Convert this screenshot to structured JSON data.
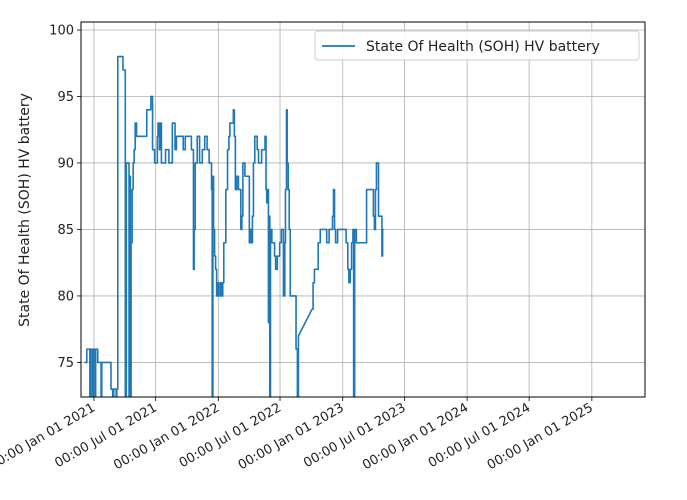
{
  "chart_data": {
    "type": "line",
    "title": "",
    "xlabel": "",
    "ylabel": "State Of Health (SOH) HV battery",
    "ylim": [
      72.4,
      100.6
    ],
    "xlim_days": [
      -38,
      1617
    ],
    "yticks": [
      75,
      80,
      85,
      90,
      95,
      100
    ],
    "xticks": [
      {
        "label": "00:00 Jan 01 2021",
        "day": 0
      },
      {
        "label": "00:00 Jul 01 2021",
        "day": 181
      },
      {
        "label": "00:00 Jan 01 2022",
        "day": 365
      },
      {
        "label": "00:00 Jul 01 2022",
        "day": 546
      },
      {
        "label": "00:00 Jan 01 2023",
        "day": 730
      },
      {
        "label": "00:00 Jul 01 2023",
        "day": 911
      },
      {
        "label": "00:00 Jan 01 2024",
        "day": 1095
      },
      {
        "label": "00:00 Jul 01 2024",
        "day": 1277
      },
      {
        "label": "00:00 Jan 01 2025",
        "day": 1461
      }
    ],
    "grid": true,
    "legend_position": "top-right",
    "series": [
      {
        "name": "State Of Health (SOH) HV battery",
        "color": "#1f77b4",
        "x_unit": "days since 2021-01-01",
        "points": [
          [
            -28,
            75
          ],
          [
            -21,
            75
          ],
          [
            -21,
            76
          ],
          [
            -12,
            76
          ],
          [
            -12,
            72
          ],
          [
            -10,
            72
          ],
          [
            -10,
            76
          ],
          [
            -5,
            76
          ],
          [
            -5,
            72
          ],
          [
            -2,
            72
          ],
          [
            -2,
            76
          ],
          [
            3,
            76
          ],
          [
            3,
            72
          ],
          [
            5,
            72
          ],
          [
            5,
            76
          ],
          [
            11,
            76
          ],
          [
            11,
            75
          ],
          [
            21,
            75
          ],
          [
            21,
            72
          ],
          [
            23,
            72
          ],
          [
            23,
            75
          ],
          [
            50,
            75
          ],
          [
            50,
            73
          ],
          [
            55,
            73
          ],
          [
            55,
            72
          ],
          [
            58,
            72
          ],
          [
            58,
            73
          ],
          [
            65,
            73
          ],
          [
            65,
            72
          ],
          [
            67,
            72
          ],
          [
            67,
            73
          ],
          [
            70,
            73
          ],
          [
            70,
            98
          ],
          [
            85,
            98
          ],
          [
            85,
            97
          ],
          [
            92,
            97
          ],
          [
            92,
            72
          ],
          [
            95,
            72
          ],
          [
            95,
            90
          ],
          [
            103,
            90
          ],
          [
            103,
            72
          ],
          [
            105,
            72
          ],
          [
            105,
            89
          ],
          [
            107,
            89
          ],
          [
            107,
            72
          ],
          [
            109,
            72
          ],
          [
            109,
            84
          ],
          [
            112,
            84
          ],
          [
            112,
            88
          ],
          [
            115,
            88
          ],
          [
            115,
            90
          ],
          [
            118,
            90
          ],
          [
            118,
            91
          ],
          [
            121,
            91
          ],
          [
            121,
            93
          ],
          [
            125,
            93
          ],
          [
            125,
            92
          ],
          [
            155,
            92
          ],
          [
            155,
            94
          ],
          [
            167,
            94
          ],
          [
            167,
            95
          ],
          [
            172,
            95
          ],
          [
            172,
            91
          ],
          [
            178,
            91
          ],
          [
            178,
            90
          ],
          [
            186,
            90
          ],
          [
            186,
            92
          ],
          [
            188,
            92
          ],
          [
            188,
            93
          ],
          [
            192,
            93
          ],
          [
            192,
            91
          ],
          [
            194,
            91
          ],
          [
            194,
            93
          ],
          [
            198,
            93
          ],
          [
            198,
            90
          ],
          [
            210,
            90
          ],
          [
            210,
            91
          ],
          [
            220,
            91
          ],
          [
            220,
            90
          ],
          [
            230,
            90
          ],
          [
            230,
            93
          ],
          [
            238,
            93
          ],
          [
            238,
            91
          ],
          [
            242,
            91
          ],
          [
            242,
            92
          ],
          [
            262,
            92
          ],
          [
            262,
            91
          ],
          [
            268,
            91
          ],
          [
            268,
            92
          ],
          [
            286,
            92
          ],
          [
            286,
            91
          ],
          [
            292,
            91
          ],
          [
            292,
            82
          ],
          [
            294,
            82
          ],
          [
            294,
            85
          ],
          [
            297,
            85
          ],
          [
            297,
            90
          ],
          [
            303,
            90
          ],
          [
            303,
            92
          ],
          [
            310,
            92
          ],
          [
            310,
            90
          ],
          [
            318,
            90
          ],
          [
            318,
            91
          ],
          [
            325,
            91
          ],
          [
            325,
            92
          ],
          [
            332,
            92
          ],
          [
            332,
            91
          ],
          [
            338,
            91
          ],
          [
            338,
            90
          ],
          [
            343,
            90
          ],
          [
            343,
            90
          ],
          [
            345,
            90
          ],
          [
            345,
            88
          ],
          [
            347,
            88
          ],
          [
            347,
            72
          ],
          [
            349,
            72
          ],
          [
            349,
            89
          ],
          [
            351,
            89
          ],
          [
            351,
            85
          ],
          [
            354,
            85
          ],
          [
            354,
            83
          ],
          [
            357,
            83
          ],
          [
            357,
            82
          ],
          [
            360,
            82
          ],
          [
            360,
            80
          ],
          [
            364,
            80
          ],
          [
            364,
            81
          ],
          [
            367,
            81
          ],
          [
            367,
            80
          ],
          [
            372,
            80
          ],
          [
            372,
            81
          ],
          [
            375,
            81
          ],
          [
            375,
            80
          ],
          [
            378,
            80
          ],
          [
            378,
            81
          ],
          [
            381,
            81
          ],
          [
            381,
            84
          ],
          [
            387,
            84
          ],
          [
            387,
            88
          ],
          [
            392,
            88
          ],
          [
            392,
            91
          ],
          [
            396,
            91
          ],
          [
            396,
            92
          ],
          [
            399,
            92
          ],
          [
            399,
            93
          ],
          [
            409,
            93
          ],
          [
            409,
            94
          ],
          [
            412,
            94
          ],
          [
            412,
            92
          ],
          [
            415,
            92
          ],
          [
            415,
            88
          ],
          [
            419,
            88
          ],
          [
            419,
            89
          ],
          [
            424,
            89
          ],
          [
            424,
            88
          ],
          [
            431,
            88
          ],
          [
            431,
            85
          ],
          [
            434,
            85
          ],
          [
            434,
            86
          ],
          [
            437,
            86
          ],
          [
            437,
            90
          ],
          [
            443,
            90
          ],
          [
            443,
            89
          ],
          [
            456,
            89
          ],
          [
            456,
            84
          ],
          [
            459,
            84
          ],
          [
            459,
            85
          ],
          [
            462,
            85
          ],
          [
            462,
            84
          ],
          [
            465,
            84
          ],
          [
            465,
            86
          ],
          [
            468,
            86
          ],
          [
            468,
            90
          ],
          [
            472,
            90
          ],
          [
            472,
            92
          ],
          [
            479,
            92
          ],
          [
            479,
            91
          ],
          [
            483,
            91
          ],
          [
            483,
            90
          ],
          [
            492,
            90
          ],
          [
            492,
            91
          ],
          [
            502,
            91
          ],
          [
            502,
            92
          ],
          [
            505,
            92
          ],
          [
            505,
            88
          ],
          [
            507,
            88
          ],
          [
            507,
            87
          ],
          [
            510,
            87
          ],
          [
            510,
            88
          ],
          [
            512,
            88
          ],
          [
            512,
            78
          ],
          [
            514,
            78
          ],
          [
            514,
            86
          ],
          [
            516,
            86
          ],
          [
            516,
            72
          ],
          [
            518,
            72
          ],
          [
            518,
            85
          ],
          [
            522,
            85
          ],
          [
            522,
            84
          ],
          [
            530,
            84
          ],
          [
            530,
            83
          ],
          [
            533,
            83
          ],
          [
            533,
            82
          ],
          [
            538,
            82
          ],
          [
            538,
            83
          ],
          [
            545,
            83
          ],
          [
            545,
            84
          ],
          [
            550,
            84
          ],
          [
            550,
            85
          ],
          [
            556,
            85
          ],
          [
            556,
            80
          ],
          [
            560,
            80
          ],
          [
            560,
            84
          ],
          [
            562,
            84
          ],
          [
            562,
            88
          ],
          [
            565,
            88
          ],
          [
            565,
            94
          ],
          [
            567,
            94
          ],
          [
            567,
            90
          ],
          [
            570,
            90
          ],
          [
            570,
            88
          ],
          [
            573,
            88
          ],
          [
            573,
            85
          ],
          [
            576,
            85
          ],
          [
            576,
            80
          ],
          [
            593,
            80
          ],
          [
            593,
            76
          ],
          [
            597,
            76
          ],
          [
            597,
            72
          ],
          [
            600,
            72
          ],
          [
            600,
            77
          ],
          [
            640,
            79
          ],
          [
            643,
            79
          ],
          [
            643,
            81
          ],
          [
            647,
            81
          ],
          [
            647,
            82
          ],
          [
            658,
            82
          ],
          [
            658,
            84
          ],
          [
            664,
            84
          ],
          [
            664,
            85
          ],
          [
            683,
            85
          ],
          [
            683,
            84
          ],
          [
            690,
            84
          ],
          [
            690,
            85
          ],
          [
            700,
            85
          ],
          [
            700,
            86
          ],
          [
            703,
            86
          ],
          [
            703,
            88
          ],
          [
            706,
            88
          ],
          [
            706,
            85
          ],
          [
            709,
            85
          ],
          [
            709,
            84
          ],
          [
            715,
            84
          ],
          [
            715,
            85
          ],
          [
            740,
            85
          ],
          [
            740,
            84
          ],
          [
            745,
            84
          ],
          [
            745,
            82
          ],
          [
            748,
            82
          ],
          [
            748,
            81
          ],
          [
            752,
            81
          ],
          [
            752,
            82
          ],
          [
            756,
            82
          ],
          [
            756,
            84
          ],
          [
            760,
            84
          ],
          [
            760,
            85
          ],
          [
            762,
            85
          ],
          [
            762,
            72
          ],
          [
            765,
            72
          ],
          [
            765,
            85
          ],
          [
            770,
            85
          ],
          [
            770,
            84
          ],
          [
            800,
            84
          ],
          [
            800,
            88
          ],
          [
            820,
            88
          ],
          [
            820,
            86
          ],
          [
            823,
            86
          ],
          [
            823,
            85
          ],
          [
            826,
            85
          ],
          [
            826,
            88
          ],
          [
            829,
            88
          ],
          [
            829,
            90
          ],
          [
            835,
            90
          ],
          [
            835,
            86
          ],
          [
            845,
            86
          ],
          [
            845,
            83
          ],
          [
            847,
            83
          ],
          [
            847,
            85
          ],
          [
            850,
            85
          ]
        ]
      }
    ]
  }
}
